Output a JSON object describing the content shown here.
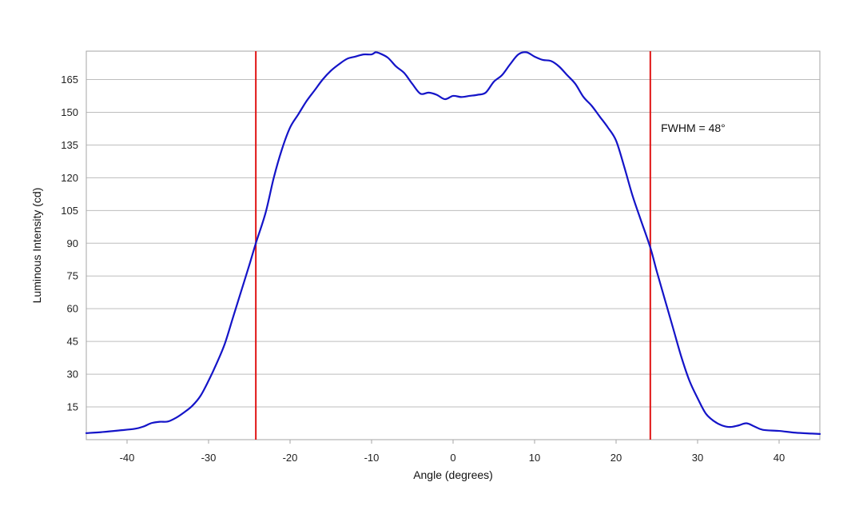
{
  "chart_data": {
    "type": "line",
    "title": "",
    "xlabel": "Angle (degrees)",
    "ylabel": "Luminous Intensity (cd)",
    "xlim": [
      -45,
      45
    ],
    "ylim": [
      0,
      178
    ],
    "x_ticks": [
      -40,
      -30,
      -20,
      -10,
      0,
      10,
      20,
      30,
      40
    ],
    "y_ticks": [
      15,
      30,
      45,
      60,
      75,
      90,
      105,
      120,
      135,
      150,
      165
    ],
    "grid": "horizontal",
    "series": [
      {
        "color": "#1414c8",
        "x": [
          -45,
          -43,
          -41,
          -39,
          -38,
          -37,
          -36,
          -35,
          -34,
          -33,
          -32,
          -31,
          -30,
          -29,
          -28,
          -27,
          -26,
          -25,
          -24.2,
          -23,
          -22,
          -21,
          -20,
          -19,
          -18,
          -17,
          -16,
          -15,
          -14,
          -13,
          -12,
          -11,
          -10,
          -9.5,
          -9,
          -8,
          -7,
          -6,
          -5,
          -4,
          -3,
          -2,
          -1,
          0,
          1,
          2,
          3,
          4,
          5,
          6,
          7,
          8,
          9,
          10,
          11,
          12,
          13,
          14,
          15,
          16,
          17,
          18,
          19,
          20,
          21,
          22,
          23,
          24.2,
          25,
          26,
          27,
          28,
          29,
          30,
          31,
          32,
          33,
          34,
          35,
          36,
          37,
          38,
          40,
          42,
          44,
          45
        ],
        "y": [
          3,
          3.5,
          4.2,
          5,
          6,
          7.6,
          8.2,
          8.3,
          10,
          12.5,
          15.5,
          20,
          27,
          35,
          44,
          56,
          68,
          80,
          90,
          104,
          120,
          133,
          143,
          149,
          155,
          160,
          165,
          169,
          172,
          174.5,
          175.5,
          176.5,
          176.5,
          177.5,
          177,
          175,
          171,
          168,
          163,
          158.5,
          159,
          158,
          156,
          157.5,
          157,
          157.5,
          158,
          159,
          164,
          167,
          172,
          176.5,
          177.5,
          175.5,
          174,
          173.5,
          171,
          167,
          163,
          157,
          153,
          148,
          143,
          137,
          125,
          112,
          101,
          88,
          77,
          64,
          51,
          38,
          27,
          19,
          12,
          8.5,
          6.5,
          5.8,
          6.5,
          7.5,
          6,
          4.5,
          4,
          3.2,
          2.8,
          2.6
        ]
      }
    ],
    "vlines": [
      {
        "x": -24.2,
        "color": "#e01414"
      },
      {
        "x": 24.2,
        "color": "#e01414"
      }
    ],
    "annotations": [
      {
        "text": "FWHM = 48°",
        "x": 25.5,
        "y": 141
      }
    ]
  }
}
